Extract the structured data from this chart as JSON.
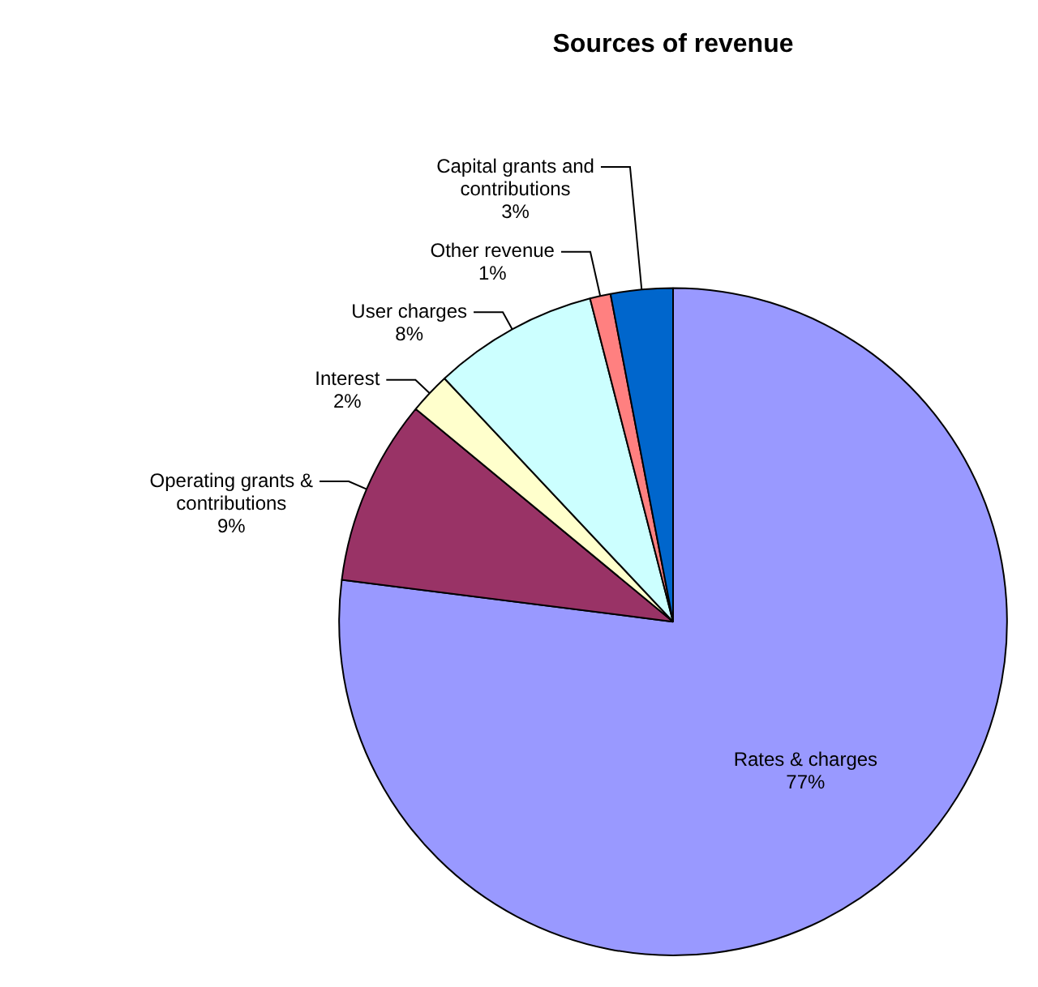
{
  "chart_data": {
    "type": "pie",
    "title": "Sources of revenue",
    "categories": [
      "Rates & charges",
      "Operating grants & contributions",
      "Interest",
      "User charges",
      "Other revenue",
      "Capital grants and contributions"
    ],
    "values": [
      77,
      9,
      2,
      8,
      1,
      3
    ],
    "value_labels": [
      "77%",
      "9%",
      "2%",
      "8%",
      "1%",
      "3%"
    ],
    "colors": [
      "#9999ff",
      "#993366",
      "#ffffcc",
      "#ccffff",
      "#ff8080",
      "#0066cc"
    ],
    "legend": false
  }
}
